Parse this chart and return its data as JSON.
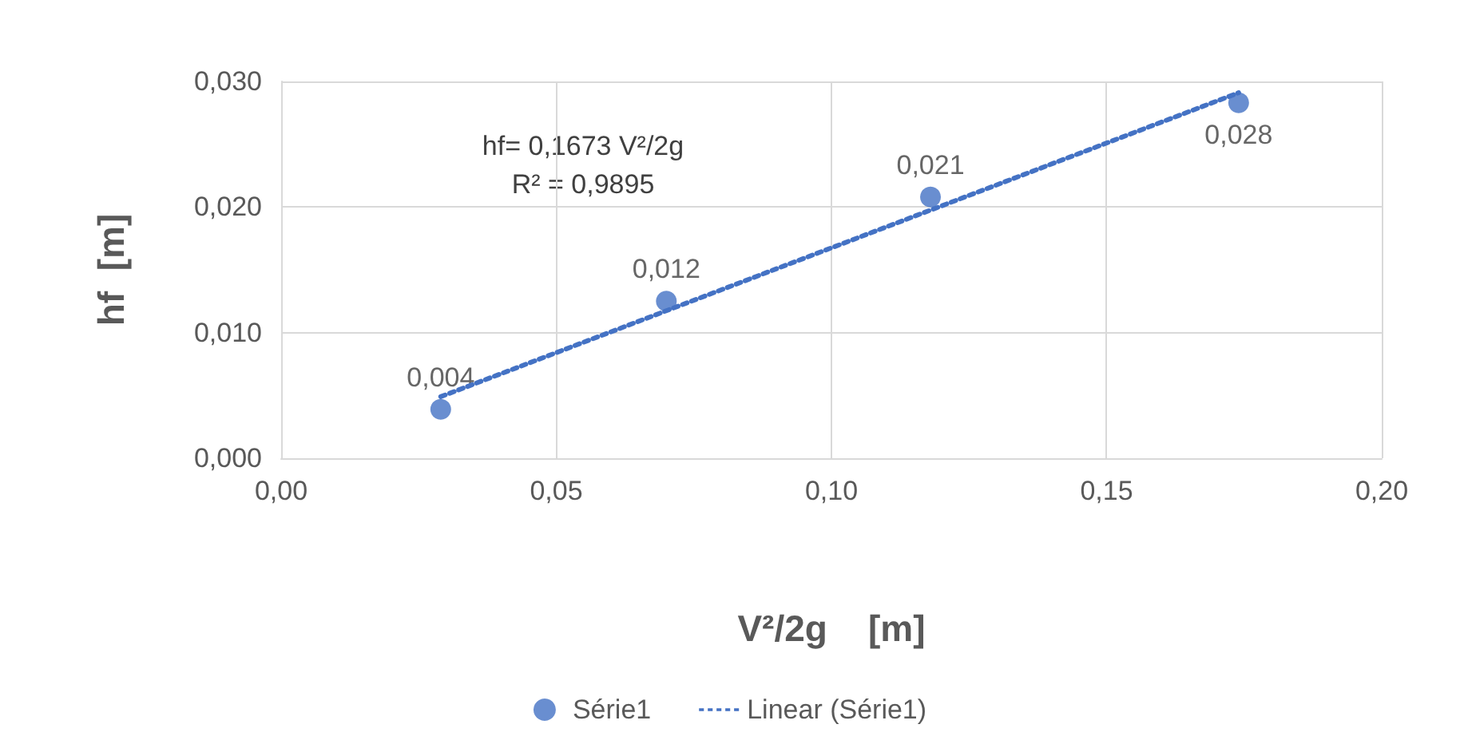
{
  "chart_data": {
    "type": "scatter",
    "xlabel": "V²/2g    [m]",
    "ylabel": "hf  [m]",
    "annotations": [
      "hf= 0,1673 V²/2g",
      "R² = 0,9895"
    ],
    "series": [
      {
        "name": "Série1",
        "color": "#4472c4",
        "x": [
          0.029,
          0.07,
          0.118,
          0.174
        ],
        "values": [
          0.0039,
          0.0125,
          0.0208,
          0.0283
        ],
        "value_labels": [
          "0,004",
          "0,012",
          "0,021",
          "0,028"
        ]
      },
      {
        "name": "Linear (Série1)",
        "type": "line",
        "color": "#4472c4",
        "line_style": "dotted",
        "marker": "none",
        "x": [
          0.029,
          0.174
        ],
        "values": [
          0.0049,
          0.0291
        ]
      }
    ],
    "xlim": [
      0,
      0.2
    ],
    "xticks": [
      {
        "value": 0,
        "label": "0,00"
      },
      {
        "value": 0.05,
        "label": "0,05"
      },
      {
        "value": 0.1,
        "label": "0,10"
      },
      {
        "value": 0.15,
        "label": "0,15"
      },
      {
        "value": 0.2,
        "label": "0,20"
      }
    ],
    "ylim": [
      0,
      0.03
    ],
    "yticks": [
      {
        "value": 0,
        "label": "0,000"
      },
      {
        "value": 0.01,
        "label": "0,010"
      },
      {
        "value": 0.02,
        "label": "0,020"
      },
      {
        "value": 0.03,
        "label": "0,030"
      }
    ],
    "grid": true,
    "legend": "bottom",
    "marker": "circle"
  }
}
